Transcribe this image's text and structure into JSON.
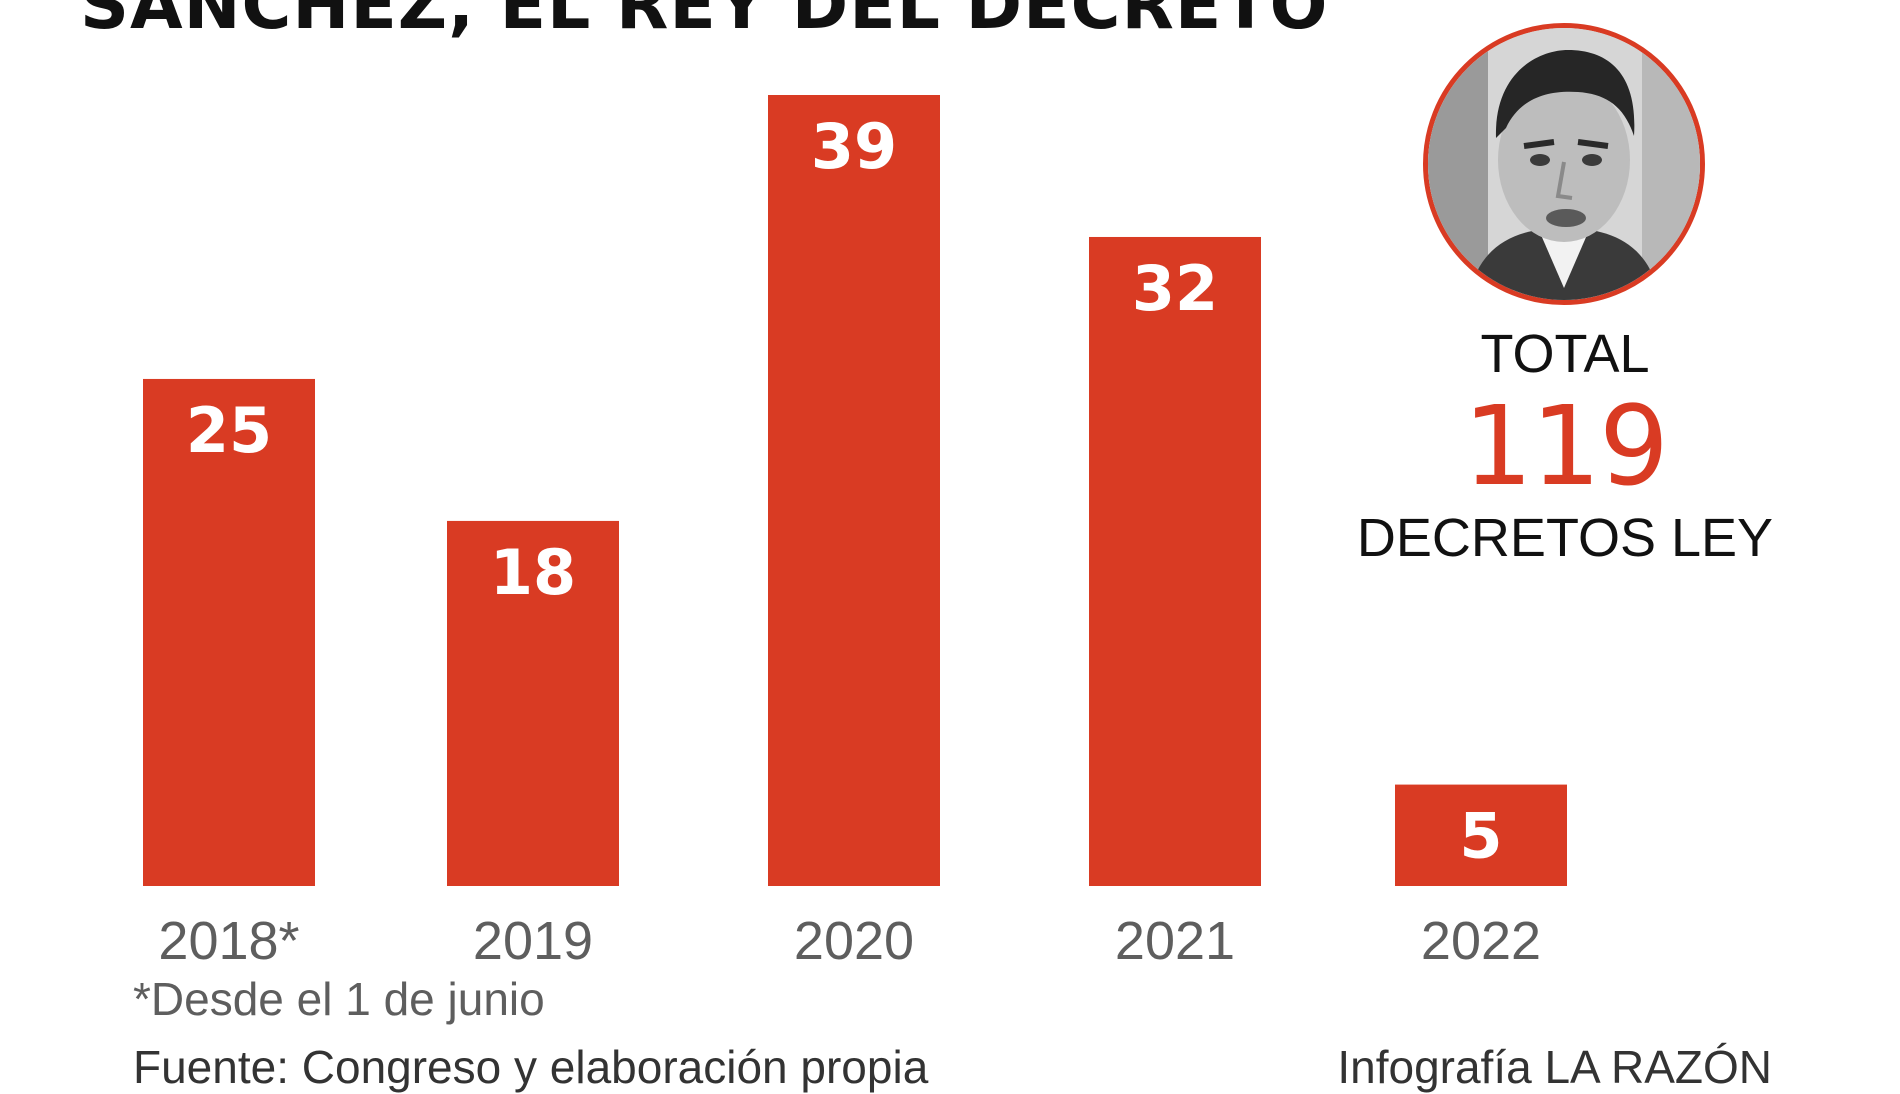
{
  "chart_data": {
    "type": "bar",
    "title": "SÁNCHEZ, EL REY DEL DECRETO",
    "categories": [
      "2018*",
      "2019",
      "2020",
      "2021",
      "2022"
    ],
    "values": [
      25,
      18,
      39,
      32,
      5
    ],
    "ylim": [
      0,
      39
    ],
    "grid": false,
    "legend": "none",
    "bar_color": "#d93b23"
  },
  "summary": {
    "total_label": "TOTAL",
    "total_value": "119",
    "total_unit": "DECRETOS LEY"
  },
  "notes": {
    "footnote": "*Desde el 1 de junio",
    "source": "Fuente: Congreso y elaboración propia",
    "credit": "Infografía LA RAZÓN"
  },
  "colors": {
    "accent": "#d93b23",
    "text": "#111111",
    "muted": "#5e5e5e"
  },
  "portrait": {
    "icon": "portrait-photo"
  }
}
